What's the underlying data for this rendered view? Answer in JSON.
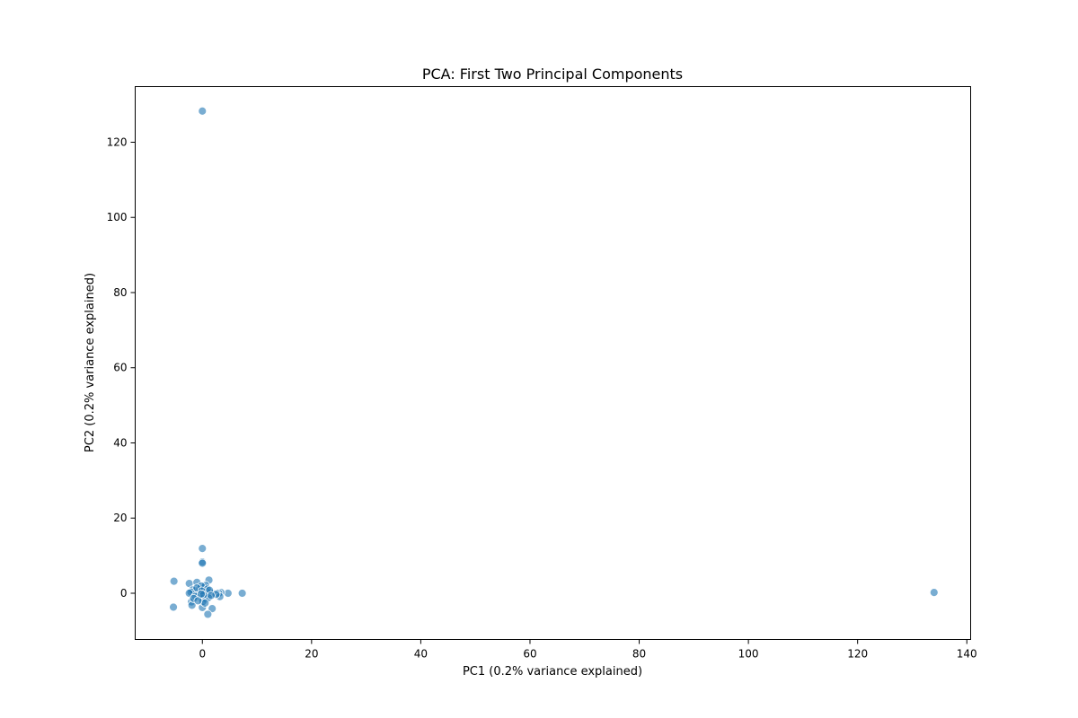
{
  "chart_data": {
    "type": "scatter",
    "title": "PCA: First Two Principal Components",
    "xlabel": "PC1 (0.2% variance explained)",
    "ylabel": "PC2 (0.2% variance explained)",
    "xlim": [
      -12.3,
      140.7
    ],
    "ylim": [
      -12.3,
      134.8
    ],
    "xticks": [
      0,
      20,
      40,
      60,
      80,
      100,
      120,
      140
    ],
    "yticks": [
      0,
      20,
      40,
      60,
      80,
      100,
      120
    ],
    "grid": false,
    "marker_color": "#1f77b4",
    "marker_alpha": 0.6,
    "points": [
      [
        0.0,
        128.3
      ],
      [
        134.0,
        0.2
      ],
      [
        0.0,
        11.9
      ],
      [
        0.0,
        8.3
      ],
      [
        0.0,
        8.0
      ],
      [
        -5.2,
        3.2
      ],
      [
        -5.3,
        -3.7
      ],
      [
        -2.4,
        2.6
      ],
      [
        -1.0,
        2.9
      ],
      [
        1.2,
        3.5
      ],
      [
        -2.0,
        -2.3
      ],
      [
        -1.9,
        -3.2
      ],
      [
        0.0,
        -3.8
      ],
      [
        1.8,
        -4.1
      ],
      [
        1.0,
        -5.6
      ],
      [
        7.3,
        0.0
      ],
      [
        4.7,
        0.0
      ],
      [
        3.4,
        0.2
      ],
      [
        3.0,
        0.0
      ],
      [
        2.6,
        0.0
      ],
      [
        2.2,
        -0.1
      ],
      [
        1.8,
        0.0
      ],
      [
        1.5,
        0.1
      ],
      [
        1.2,
        -0.2
      ],
      [
        1.0,
        0.0
      ],
      [
        0.8,
        0.3
      ],
      [
        0.5,
        0.0
      ],
      [
        0.2,
        0.1
      ],
      [
        0.0,
        0.0
      ],
      [
        -0.3,
        0.2
      ],
      [
        -0.6,
        0.0
      ],
      [
        -0.9,
        0.4
      ],
      [
        -1.2,
        0.1
      ],
      [
        -1.5,
        0.6
      ],
      [
        -1.8,
        0.9
      ],
      [
        -2.1,
        0.3
      ],
      [
        -2.4,
        0.0
      ],
      [
        -0.5,
        1.2
      ],
      [
        0.3,
        1.6
      ],
      [
        0.6,
        2.1
      ],
      [
        -0.2,
        1.9
      ],
      [
        0.9,
        1.1
      ],
      [
        1.3,
        0.8
      ],
      [
        -1.0,
        1.4
      ],
      [
        -0.7,
        -0.6
      ],
      [
        -0.4,
        -1.1
      ],
      [
        0.4,
        -0.9
      ],
      [
        0.7,
        -1.5
      ],
      [
        1.1,
        -1.2
      ],
      [
        -1.3,
        -0.8
      ],
      [
        -1.6,
        -1.4
      ],
      [
        0.1,
        -2.2
      ],
      [
        0.5,
        -2.6
      ],
      [
        -0.8,
        -2.0
      ],
      [
        3.2,
        -0.9
      ],
      [
        2.5,
        -0.3
      ],
      [
        1.6,
        -0.6
      ],
      [
        -0.1,
        0.6
      ],
      [
        0.2,
        -0.4
      ],
      [
        -0.2,
        -0.2
      ]
    ]
  }
}
